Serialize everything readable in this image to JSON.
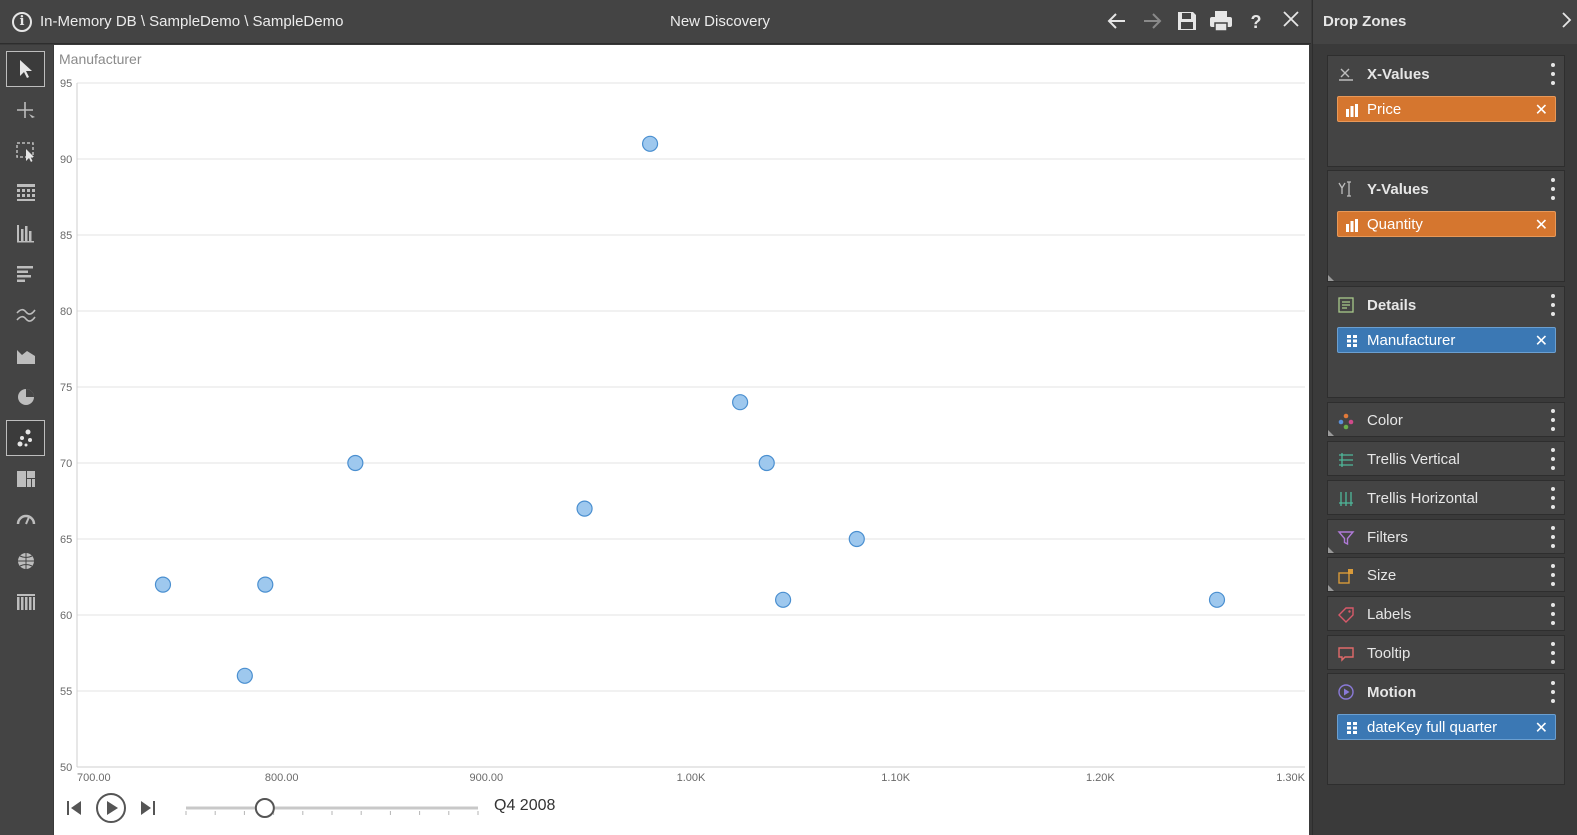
{
  "window": {
    "path": "In-Memory DB \\ SampleDemo \\ SampleDemo",
    "title": "New Discovery",
    "icons": [
      "info-icon",
      "back-icon",
      "forward-icon",
      "save-icon",
      "print-icon",
      "help-icon",
      "close-icon"
    ],
    "help_glyph": "?"
  },
  "toolbar": {
    "tools": [
      "pointer-icon",
      "crosshair-icon",
      "select-region-icon",
      "grid-table-icon",
      "column-chart-icon",
      "bar-chart-icon",
      "line-chart-icon",
      "area-chart-icon",
      "pie-chart-icon",
      "scatter-chart-icon",
      "treemap-icon",
      "gauge-icon",
      "map-icon",
      "pivot-table-icon"
    ],
    "active_tools": [
      "pointer-icon",
      "scatter-chart-icon"
    ]
  },
  "canvas": {
    "detail_label": "Manufacturer"
  },
  "chart_data": {
    "type": "scatter",
    "title": "",
    "xlabel": "",
    "ylabel": "",
    "xlim": [
      700,
      1300
    ],
    "ylim": [
      50,
      95
    ],
    "x_ticks": [
      700,
      800,
      900,
      1000,
      1100,
      1200,
      1300
    ],
    "x_tick_labels": [
      "700.00",
      "800.00",
      "900.00",
      "1.00K",
      "1.10K",
      "1.20K",
      "1.30K"
    ],
    "y_ticks": [
      50,
      55,
      60,
      65,
      70,
      75,
      80,
      85,
      90,
      95
    ],
    "y_tick_labels": [
      "50",
      "55",
      "60",
      "65",
      "70",
      "75",
      "80",
      "85",
      "90",
      "95"
    ],
    "grid": true,
    "marker_color": "#9ec8ee",
    "marker_edge_color": "#4a8fd0",
    "points": [
      {
        "x": 742,
        "y": 62
      },
      {
        "x": 782,
        "y": 56
      },
      {
        "x": 792,
        "y": 62
      },
      {
        "x": 836,
        "y": 70
      },
      {
        "x": 948,
        "y": 67
      },
      {
        "x": 980,
        "y": 91
      },
      {
        "x": 1024,
        "y": 74
      },
      {
        "x": 1037,
        "y": 70
      },
      {
        "x": 1045,
        "y": 61
      },
      {
        "x": 1081,
        "y": 65
      },
      {
        "x": 1257,
        "y": 61
      }
    ]
  },
  "motion": {
    "time_label": "Q4 2008",
    "slider_position": 0.27,
    "icons": [
      "skip-start-icon",
      "play-icon",
      "skip-end-icon"
    ]
  },
  "drop_zones": {
    "title": "Drop Zones",
    "zones": [
      {
        "label": "X-Values",
        "icon": "x-axis-icon",
        "pill": {
          "label": "Price",
          "kind": "measure",
          "color": "#d5762f"
        }
      },
      {
        "label": "Y-Values",
        "icon": "y-axis-icon",
        "pill": {
          "label": "Quantity",
          "kind": "measure",
          "color": "#d5762f"
        }
      },
      {
        "label": "Details",
        "icon": "details-icon",
        "pill": {
          "label": "Manufacturer",
          "kind": "dimension",
          "color": "#3b78b4"
        }
      },
      {
        "label": "Color",
        "icon": "color-icon"
      },
      {
        "label": "Trellis Vertical",
        "icon": "trellis-vertical-icon"
      },
      {
        "label": "Trellis Horizontal",
        "icon": "trellis-horizontal-icon"
      },
      {
        "label": "Filters",
        "icon": "filter-icon"
      },
      {
        "label": "Size",
        "icon": "size-icon"
      },
      {
        "label": "Labels",
        "icon": "label-tag-icon"
      },
      {
        "label": "Tooltip",
        "icon": "tooltip-icon"
      },
      {
        "label": "Motion",
        "icon": "motion-icon",
        "pill": {
          "label": "dateKey full quarter",
          "kind": "dimension",
          "color": "#3b78b4"
        }
      }
    ],
    "remove_glyph": "✕"
  }
}
